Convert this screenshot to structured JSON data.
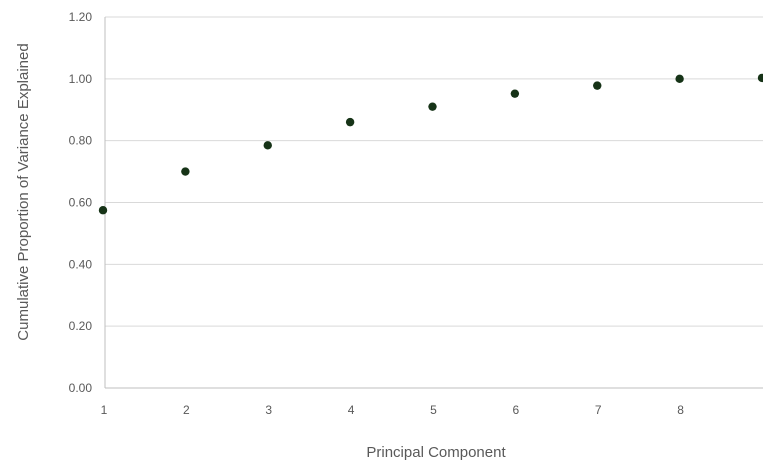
{
  "chart_data": {
    "type": "scatter",
    "title": "",
    "xlabel": "Principal Component",
    "ylabel": "Cumulative Proportion of Variance Explained",
    "x": [
      1,
      2,
      3,
      4,
      5,
      6,
      7,
      8,
      9
    ],
    "y": [
      0.575,
      0.7,
      0.785,
      0.86,
      0.91,
      0.952,
      0.978,
      1.0,
      1.003
    ],
    "xticks": [
      "1",
      "2",
      "3",
      "4",
      "5",
      "6",
      "7",
      "8"
    ],
    "yticks": [
      "0.00",
      "0.20",
      "0.40",
      "0.60",
      "0.80",
      "1.00",
      "1.20"
    ],
    "xlim": [
      1,
      9
    ],
    "ylim": [
      0,
      1.2
    ],
    "grid": "horizontal",
    "legend": "none",
    "colors": {
      "point": "#163317",
      "grid": "#d9d9d9",
      "axis": "#bfbfbf",
      "text": "#595959"
    }
  }
}
